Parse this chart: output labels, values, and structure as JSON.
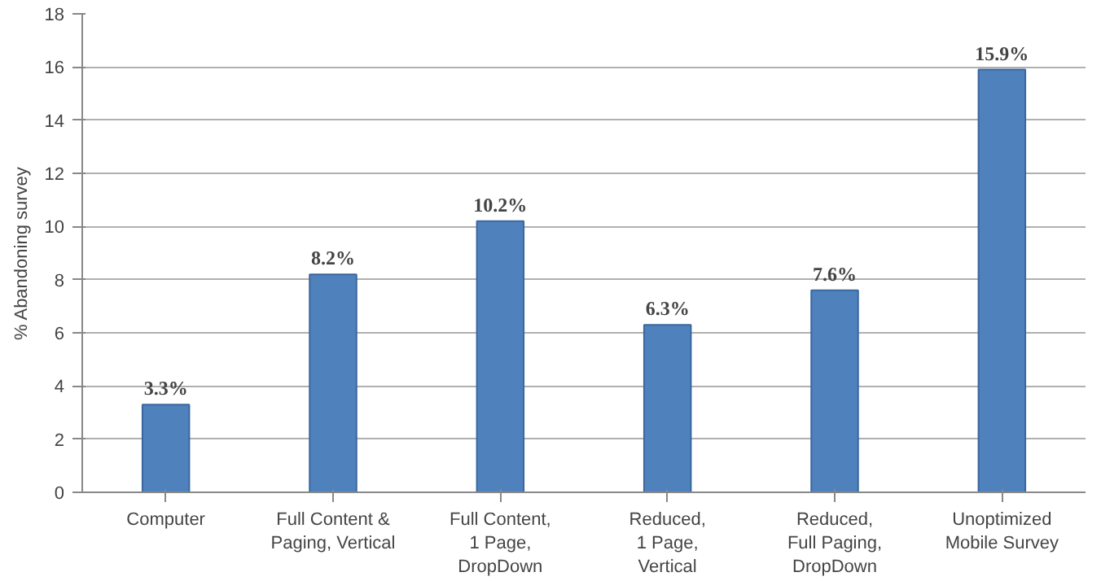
{
  "chart_data": {
    "type": "bar",
    "ylabel": "% Abandoning survey",
    "categories": [
      "Computer",
      "Full Content &\nPaging, Vertical",
      "Full Content,\n1 Page,\nDropDown",
      "Reduced,\n1 Page,\nVertical",
      "Reduced,\nFull Paging,\nDropDown",
      "Unoptimized\nMobile Survey"
    ],
    "values": [
      3.3,
      8.2,
      10.2,
      6.3,
      7.6,
      15.9
    ],
    "value_labels": [
      "3.3%",
      "8.2%",
      "10.2%",
      "6.3%",
      "7.6%",
      "15.9%"
    ],
    "color": "#4f81bd",
    "ylim": [
      0,
      18
    ],
    "yticks": [
      0,
      2,
      4,
      6,
      8,
      10,
      12,
      14,
      16,
      18
    ],
    "grid": "y"
  }
}
